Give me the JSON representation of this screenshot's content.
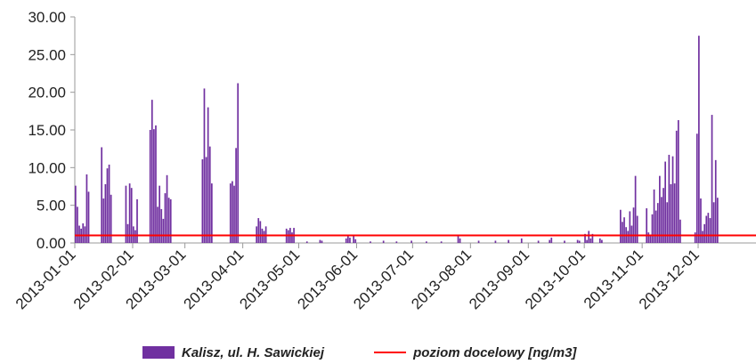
{
  "chart_data": {
    "type": "bar",
    "title": "",
    "xlabel": "",
    "ylabel": "",
    "ylim": [
      0,
      30
    ],
    "y_ticks": [
      "0.00",
      "5.00",
      "10.00",
      "15.00",
      "20.00",
      "25.00",
      "30.00"
    ],
    "x_tick_labels": [
      "2013-01-01",
      "2013-02-01",
      "2013-03-01",
      "2013-04-01",
      "2013-05-01",
      "2013-06-01",
      "2013-07-01",
      "2013-08-01",
      "2013-09-01",
      "2013-10-01",
      "2013-11-01",
      "2013-12-01"
    ],
    "x_range": [
      "2013-01-01",
      "2013-12-31"
    ],
    "grid": false,
    "legend_position": "bottom",
    "series": [
      {
        "name": "Kalisz, ul. H. Sawickiej",
        "kind": "bar",
        "color": "#7030a0",
        "points": [
          [
            "2013-01-01",
            7.6
          ],
          [
            "2013-01-02",
            4.8
          ],
          [
            "2013-01-03",
            2.3
          ],
          [
            "2013-01-04",
            1.9
          ],
          [
            "2013-01-05",
            2.6
          ],
          [
            "2013-01-06",
            2.2
          ],
          [
            "2013-01-07",
            9.1
          ],
          [
            "2013-01-08",
            6.8
          ],
          [
            "2013-01-15",
            12.7
          ],
          [
            "2013-01-16",
            5.9
          ],
          [
            "2013-01-17",
            7.8
          ],
          [
            "2013-01-18",
            9.9
          ],
          [
            "2013-01-19",
            10.4
          ],
          [
            "2013-01-20",
            6.4
          ],
          [
            "2013-01-28",
            7.6
          ],
          [
            "2013-01-29",
            2.5
          ],
          [
            "2013-01-30",
            7.9
          ],
          [
            "2013-01-31",
            7.3
          ],
          [
            "2013-02-01",
            2.2
          ],
          [
            "2013-02-02",
            1.7
          ],
          [
            "2013-02-03",
            5.8
          ],
          [
            "2013-02-10",
            15.0
          ],
          [
            "2013-02-11",
            19.0
          ],
          [
            "2013-02-12",
            15.1
          ],
          [
            "2013-02-13",
            15.6
          ],
          [
            "2013-02-14",
            4.8
          ],
          [
            "2013-02-15",
            7.6
          ],
          [
            "2013-02-16",
            4.5
          ],
          [
            "2013-02-17",
            3.2
          ],
          [
            "2013-02-18",
            6.6
          ],
          [
            "2013-02-19",
            9.0
          ],
          [
            "2013-02-20",
            6.0
          ],
          [
            "2013-02-21",
            5.8
          ],
          [
            "2013-03-10",
            11.1
          ],
          [
            "2013-03-11",
            20.5
          ],
          [
            "2013-03-12",
            11.4
          ],
          [
            "2013-03-13",
            18.0
          ],
          [
            "2013-03-14",
            12.8
          ],
          [
            "2013-03-15",
            7.9
          ],
          [
            "2013-03-25",
            7.9
          ],
          [
            "2013-03-26",
            8.2
          ],
          [
            "2013-03-27",
            7.6
          ],
          [
            "2013-03-28",
            12.6
          ],
          [
            "2013-03-29",
            21.2
          ],
          [
            "2013-04-08",
            2.2
          ],
          [
            "2013-04-09",
            3.3
          ],
          [
            "2013-04-10",
            2.9
          ],
          [
            "2013-04-11",
            1.9
          ],
          [
            "2013-04-12",
            1.6
          ],
          [
            "2013-04-13",
            2.2
          ],
          [
            "2013-04-24",
            1.9
          ],
          [
            "2013-04-25",
            1.7
          ],
          [
            "2013-04-26",
            2.0
          ],
          [
            "2013-04-27",
            1.4
          ],
          [
            "2013-04-28",
            2.0
          ],
          [
            "2013-05-05",
            0.2
          ],
          [
            "2013-05-12",
            0.4
          ],
          [
            "2013-05-13",
            0.3
          ],
          [
            "2013-05-26",
            0.6
          ],
          [
            "2013-05-27",
            1.0
          ],
          [
            "2013-05-28",
            0.7
          ],
          [
            "2013-05-30",
            1.0
          ],
          [
            "2013-05-31",
            0.5
          ],
          [
            "2013-06-08",
            0.2
          ],
          [
            "2013-06-15",
            0.3
          ],
          [
            "2013-06-22",
            0.2
          ],
          [
            "2013-06-30",
            0.3
          ],
          [
            "2013-07-08",
            0.2
          ],
          [
            "2013-07-16",
            0.2
          ],
          [
            "2013-07-25",
            1.0
          ],
          [
            "2013-07-26",
            0.6
          ],
          [
            "2013-08-05",
            0.3
          ],
          [
            "2013-08-14",
            0.3
          ],
          [
            "2013-08-21",
            0.4
          ],
          [
            "2013-08-28",
            0.6
          ],
          [
            "2013-09-06",
            0.3
          ],
          [
            "2013-09-12",
            0.4
          ],
          [
            "2013-09-13",
            0.7
          ],
          [
            "2013-09-20",
            0.3
          ],
          [
            "2013-09-27",
            0.4
          ],
          [
            "2013-09-28",
            0.3
          ],
          [
            "2013-10-01",
            1.2
          ],
          [
            "2013-10-02",
            0.4
          ],
          [
            "2013-10-03",
            1.6
          ],
          [
            "2013-10-04",
            0.6
          ],
          [
            "2013-10-05",
            1.2
          ],
          [
            "2013-10-09",
            0.6
          ],
          [
            "2013-10-10",
            0.4
          ],
          [
            "2013-10-20",
            4.4
          ],
          [
            "2013-10-21",
            2.8
          ],
          [
            "2013-10-22",
            3.4
          ],
          [
            "2013-10-23",
            2.1
          ],
          [
            "2013-10-24",
            1.6
          ],
          [
            "2013-10-25",
            4.2
          ],
          [
            "2013-10-26",
            2.3
          ],
          [
            "2013-10-27",
            4.7
          ],
          [
            "2013-10-28",
            8.9
          ],
          [
            "2013-10-29",
            3.6
          ],
          [
            "2013-11-03",
            4.6
          ],
          [
            "2013-11-04",
            1.4
          ],
          [
            "2013-11-05",
            0.9
          ],
          [
            "2013-11-06",
            3.8
          ],
          [
            "2013-11-07",
            7.1
          ],
          [
            "2013-11-08",
            4.3
          ],
          [
            "2013-11-09",
            5.3
          ],
          [
            "2013-11-10",
            8.9
          ],
          [
            "2013-11-11",
            6.1
          ],
          [
            "2013-11-12",
            7.3
          ],
          [
            "2013-11-13",
            10.8
          ],
          [
            "2013-11-14",
            5.4
          ],
          [
            "2013-11-15",
            11.7
          ],
          [
            "2013-11-16",
            7.8
          ],
          [
            "2013-11-17",
            11.5
          ],
          [
            "2013-11-18",
            7.9
          ],
          [
            "2013-11-19",
            14.9
          ],
          [
            "2013-11-20",
            16.3
          ],
          [
            "2013-11-21",
            3.1
          ],
          [
            "2013-11-29",
            1.4
          ],
          [
            "2013-11-30",
            14.5
          ],
          [
            "2013-12-01",
            27.5
          ],
          [
            "2013-12-02",
            5.9
          ],
          [
            "2013-12-03",
            1.6
          ],
          [
            "2013-12-04",
            2.5
          ],
          [
            "2013-12-05",
            3.6
          ],
          [
            "2013-12-06",
            4.0
          ],
          [
            "2013-12-07",
            3.3
          ],
          [
            "2013-12-08",
            17.0
          ],
          [
            "2013-12-09",
            5.4
          ],
          [
            "2013-12-10",
            11.0
          ],
          [
            "2013-12-11",
            6.0
          ]
        ]
      },
      {
        "name": "poziom docelowy [ng/m3]",
        "kind": "line",
        "color": "#ff0000",
        "value": 1.0
      }
    ]
  }
}
